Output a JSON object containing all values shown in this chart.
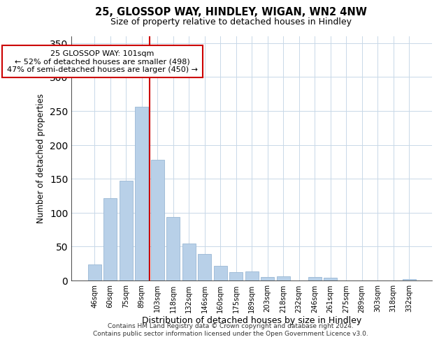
{
  "title": "25, GLOSSOP WAY, HINDLEY, WIGAN, WN2 4NW",
  "subtitle": "Size of property relative to detached houses in Hindley",
  "xlabel": "Distribution of detached houses by size in Hindley",
  "ylabel": "Number of detached properties",
  "categories": [
    "46sqm",
    "60sqm",
    "75sqm",
    "89sqm",
    "103sqm",
    "118sqm",
    "132sqm",
    "146sqm",
    "160sqm",
    "175sqm",
    "189sqm",
    "203sqm",
    "218sqm",
    "232sqm",
    "246sqm",
    "261sqm",
    "275sqm",
    "289sqm",
    "303sqm",
    "318sqm",
    "332sqm"
  ],
  "values": [
    24,
    121,
    147,
    256,
    178,
    94,
    55,
    39,
    22,
    12,
    13,
    5,
    6,
    0,
    5,
    4,
    0,
    0,
    0,
    0,
    2
  ],
  "bar_color": "#b8d0e8",
  "bar_edge_color": "#9ab8d4",
  "vline_color": "#cc0000",
  "annotation_title": "25 GLOSSOP WAY: 101sqm",
  "annotation_line1": "← 52% of detached houses are smaller (498)",
  "annotation_line2": "47% of semi-detached houses are larger (450) →",
  "annotation_box_color": "#ffffff",
  "annotation_box_edge_color": "#cc0000",
  "ylim": [
    0,
    360
  ],
  "grid_color": "#c8d8e8",
  "footer1": "Contains HM Land Registry data © Crown copyright and database right 2024.",
  "footer2": "Contains public sector information licensed under the Open Government Licence v3.0."
}
